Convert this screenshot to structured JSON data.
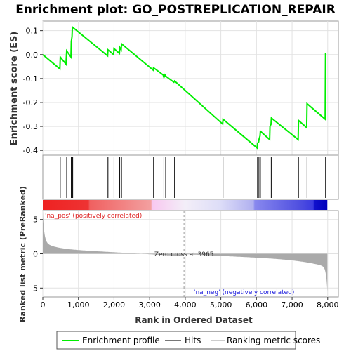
{
  "chart_data": {
    "type": "line",
    "title": "Enrichment plot: GO_POSTREPLICATION_REPAIR",
    "es_panel": {
      "ylabel": "Enrichment score (ES)",
      "ylim": [
        -0.42,
        0.14
      ],
      "yticks": [
        0.1,
        0.0,
        -0.1,
        -0.2,
        -0.3,
        -0.4
      ],
      "ytick_labels": [
        "0.1",
        "0.0",
        "-0.1",
        "-0.2",
        "-0.3",
        "-0.4"
      ],
      "grid": true,
      "series": [
        {
          "name": "Enrichment profile",
          "color": "#00ee00",
          "x": [
            0,
            480,
            490,
            650,
            670,
            790,
            800,
            820,
            830,
            1820,
            1830,
            1990,
            2000,
            2150,
            2160,
            2200,
            2210,
            3100,
            3110,
            3380,
            3400,
            3430,
            3450,
            3680,
            3700,
            5050,
            5060,
            6020,
            6030,
            6060,
            6070,
            6100,
            6110,
            6370,
            6380,
            6410,
            6420,
            7170,
            7180,
            7410,
            7420,
            7930,
            7940
          ],
          "y": [
            0.0,
            -0.06,
            -0.01,
            -0.04,
            0.015,
            -0.01,
            0.055,
            0.075,
            0.115,
            -0.005,
            0.02,
            0.0,
            0.025,
            0.005,
            0.03,
            0.02,
            0.045,
            -0.065,
            -0.055,
            -0.085,
            -0.095,
            -0.085,
            -0.09,
            -0.115,
            -0.11,
            -0.29,
            -0.27,
            -0.39,
            -0.37,
            -0.365,
            -0.355,
            -0.34,
            -0.32,
            -0.355,
            -0.3,
            -0.29,
            -0.265,
            -0.355,
            -0.275,
            -0.305,
            -0.205,
            -0.27,
            0.005
          ]
        }
      ]
    },
    "hits": {
      "name": "Hits",
      "positions": [
        490,
        670,
        800,
        820,
        840,
        1830,
        2000,
        2160,
        2210,
        3110,
        3400,
        3450,
        3700,
        5060,
        6030,
        6070,
        6110,
        6380,
        6420,
        7180,
        7420,
        7940
      ]
    },
    "rank_panel": {
      "ylabel": "Ranked list metric (PreRanked)",
      "ylim": [
        -6.3,
        6.3
      ],
      "yticks": [
        5,
        0,
        -5
      ],
      "ytick_labels": [
        "5",
        "0",
        "-5"
      ],
      "legend_name": "Ranking metric scores",
      "zero_cross_label": "Zero cross at 3965",
      "zero_cross": 3965,
      "pos_label": "'na_pos' (positively correlated)",
      "neg_label": "'na_neg' (negatively correlated)"
    },
    "x_axis": {
      "xlabel": "Rank in Ordered Dataset",
      "xlim": [
        0,
        8300
      ],
      "xticks": [
        0,
        1000,
        2000,
        3000,
        4000,
        5000,
        6000,
        7000,
        8000
      ],
      "xtick_labels": [
        "0",
        "1,000",
        "2,000",
        "3,000",
        "4,000",
        "5,000",
        "6,000",
        "7,000",
        "8,000"
      ],
      "n_genes": 7990
    },
    "colors": {
      "profile": "#00ee00",
      "hit": "#000000",
      "pos": "#ff0000",
      "neg": "#0000ff",
      "metric": "#aaaaaa"
    },
    "legend": {
      "profile_label": "Enrichment profile",
      "hits_label": "Hits",
      "metric_label": "Ranking metric scores"
    }
  }
}
